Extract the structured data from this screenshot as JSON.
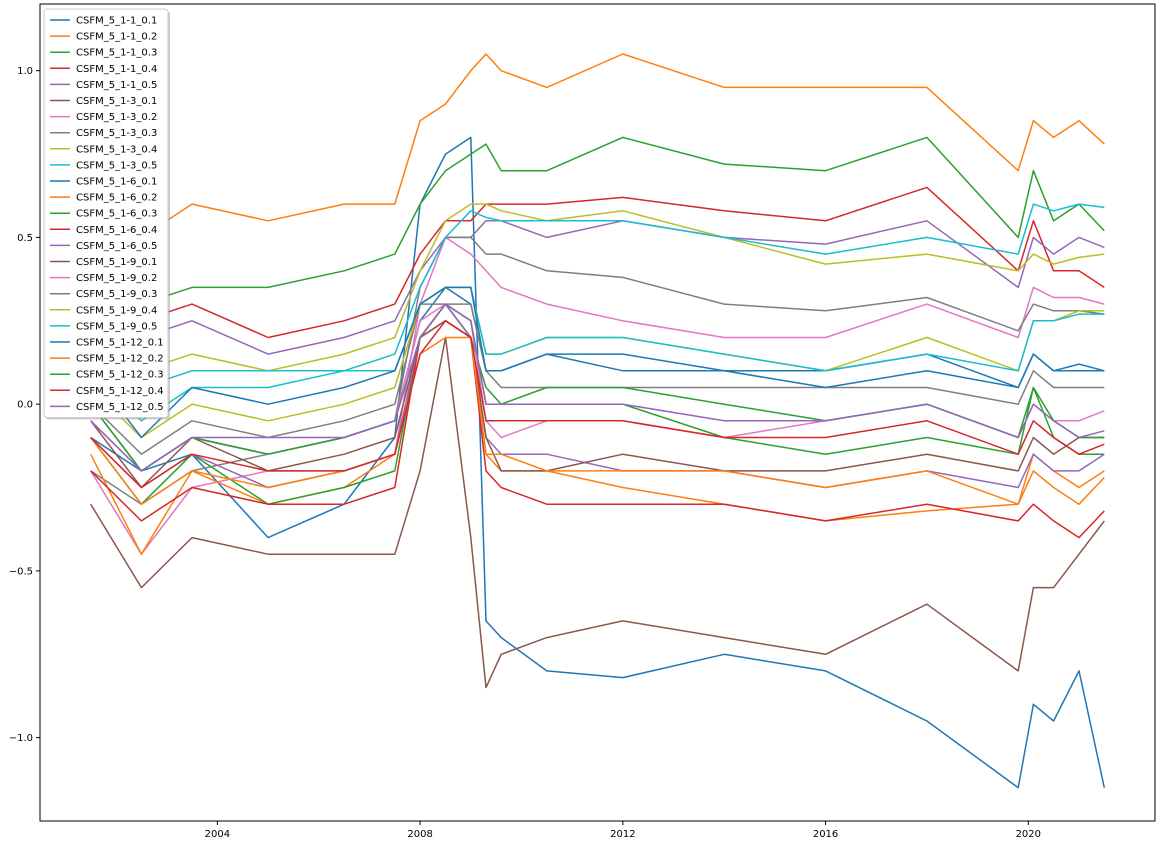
{
  "chart_data": {
    "type": "line",
    "title": "",
    "xlabel": "",
    "ylabel": "",
    "x_range": [
      2000.5,
      2022.5
    ],
    "ylim": [
      -1.25,
      1.2
    ],
    "grid": false,
    "legend_placement": "upper-left",
    "x_ticks": [
      2004,
      2008,
      2012,
      2016,
      2020
    ],
    "x_tick_labels": [
      "2004",
      "2008",
      "2012",
      "2016",
      "2020"
    ],
    "y_ticks": [
      1.0,
      0.5,
      0.0,
      -0.5,
      -1.0
    ],
    "y_tick_labels": [
      "1.0",
      "0.5",
      "0.0",
      "−0.5",
      "−1.0"
    ],
    "x_dates": [
      2001.5,
      2002.5,
      2003.5,
      2005.0,
      2006.5,
      2007.5,
      2008.0,
      2008.5,
      2009.0,
      2009.3,
      2009.6,
      2010.5,
      2012.0,
      2014.0,
      2016.0,
      2018.0,
      2019.8,
      2020.1,
      2020.5,
      2021.0,
      2021.5
    ],
    "series": [
      {
        "name": "CSFM_5_1-1_0.1",
        "color": "#1f77b4",
        "values": [
          0.0,
          -0.2,
          -0.15,
          -0.4,
          -0.3,
          -0.1,
          0.6,
          0.75,
          0.8,
          -0.65,
          -0.7,
          -0.8,
          -0.82,
          -0.75,
          -0.8,
          -0.95,
          -1.15,
          -0.9,
          -0.95,
          -0.8,
          -1.15
        ]
      },
      {
        "name": "CSFM_5_1-1_0.2",
        "color": "#ff7f0e",
        "values": [
          0.55,
          0.5,
          0.6,
          0.55,
          0.6,
          0.6,
          0.85,
          0.9,
          1.0,
          1.05,
          1.0,
          0.95,
          1.05,
          0.95,
          0.95,
          0.95,
          0.7,
          0.85,
          0.8,
          0.85,
          0.78
        ]
      },
      {
        "name": "CSFM_5_1-1_0.3",
        "color": "#2ca02c",
        "values": [
          0.3,
          0.3,
          0.35,
          0.35,
          0.4,
          0.45,
          0.6,
          0.7,
          0.75,
          0.78,
          0.7,
          0.7,
          0.8,
          0.72,
          0.7,
          0.8,
          0.5,
          0.7,
          0.55,
          0.6,
          0.52
        ]
      },
      {
        "name": "CSFM_5_1-1_0.4",
        "color": "#d62728",
        "values": [
          0.25,
          0.25,
          0.3,
          0.2,
          0.25,
          0.3,
          0.45,
          0.55,
          0.55,
          0.6,
          0.6,
          0.6,
          0.62,
          0.58,
          0.55,
          0.65,
          0.4,
          0.55,
          0.4,
          0.4,
          0.35
        ]
      },
      {
        "name": "CSFM_5_1-1_0.5",
        "color": "#9467bd",
        "values": [
          0.2,
          0.2,
          0.25,
          0.15,
          0.2,
          0.25,
          0.4,
          0.5,
          0.5,
          0.55,
          0.55,
          0.5,
          0.55,
          0.5,
          0.48,
          0.55,
          0.35,
          0.5,
          0.45,
          0.5,
          0.47
        ]
      },
      {
        "name": "CSFM_5_1-3_0.1",
        "color": "#8c564b",
        "values": [
          -0.3,
          -0.55,
          -0.4,
          -0.45,
          -0.45,
          -0.45,
          -0.2,
          0.2,
          -0.4,
          -0.85,
          -0.75,
          -0.7,
          -0.65,
          -0.7,
          -0.75,
          -0.6,
          -0.8,
          -0.55,
          -0.55,
          -0.45,
          -0.35
        ]
      },
      {
        "name": "CSFM_5_1-3_0.2",
        "color": "#e377c2",
        "values": [
          -0.2,
          -0.45,
          -0.25,
          -0.2,
          -0.2,
          -0.15,
          0.3,
          0.5,
          0.45,
          0.4,
          0.35,
          0.3,
          0.25,
          0.2,
          0.2,
          0.3,
          0.2,
          0.35,
          0.32,
          0.32,
          0.3
        ]
      },
      {
        "name": "CSFM_5_1-3_0.3",
        "color": "#7f7f7f",
        "values": [
          -0.2,
          -0.3,
          -0.2,
          -0.15,
          -0.1,
          -0.05,
          0.35,
          0.5,
          0.5,
          0.45,
          0.45,
          0.4,
          0.38,
          0.3,
          0.28,
          0.32,
          0.22,
          0.3,
          0.28,
          0.28,
          0.27
        ]
      },
      {
        "name": "CSFM_5_1-3_0.4",
        "color": "#bcbd22",
        "values": [
          0.1,
          0.1,
          0.15,
          0.1,
          0.15,
          0.2,
          0.4,
          0.55,
          0.6,
          0.6,
          0.58,
          0.55,
          0.58,
          0.5,
          0.42,
          0.45,
          0.4,
          0.45,
          0.42,
          0.44,
          0.45
        ]
      },
      {
        "name": "CSFM_5_1-3_0.5",
        "color": "#17becf",
        "values": [
          0.05,
          0.05,
          0.1,
          0.1,
          0.1,
          0.15,
          0.35,
          0.5,
          0.58,
          0.56,
          0.55,
          0.55,
          0.55,
          0.5,
          0.45,
          0.5,
          0.45,
          0.6,
          0.58,
          0.6,
          0.59
        ]
      },
      {
        "name": "CSFM_5_1-6_0.1",
        "color": "#1f77b4",
        "values": [
          -0.1,
          -0.2,
          -0.1,
          -0.15,
          -0.1,
          -0.05,
          0.25,
          0.35,
          0.3,
          0.1,
          0.1,
          0.15,
          0.15,
          0.1,
          0.1,
          0.15,
          0.05,
          0.15,
          0.1,
          0.12,
          0.1
        ]
      },
      {
        "name": "CSFM_5_1-6_0.2",
        "color": "#ff7f0e",
        "values": [
          -0.15,
          -0.45,
          -0.2,
          -0.3,
          -0.25,
          -0.15,
          0.2,
          0.3,
          0.2,
          -0.15,
          -0.2,
          -0.2,
          -0.25,
          -0.3,
          -0.35,
          -0.32,
          -0.3,
          -0.15,
          -0.2,
          -0.25,
          -0.2
        ]
      },
      {
        "name": "CSFM_5_1-6_0.3",
        "color": "#2ca02c",
        "values": [
          -0.1,
          -0.3,
          -0.15,
          -0.3,
          -0.25,
          -0.2,
          0.2,
          0.3,
          0.2,
          0.05,
          0.0,
          0.0,
          0.0,
          -0.1,
          -0.15,
          -0.1,
          -0.15,
          0.05,
          -0.1,
          -0.15,
          -0.15
        ]
      },
      {
        "name": "CSFM_5_1-6_0.4",
        "color": "#d62728",
        "values": [
          -0.2,
          -0.35,
          -0.25,
          -0.3,
          -0.3,
          -0.25,
          0.2,
          0.25,
          0.2,
          -0.2,
          -0.25,
          -0.3,
          -0.3,
          -0.3,
          -0.35,
          -0.3,
          -0.35,
          -0.3,
          -0.35,
          -0.4,
          -0.32
        ]
      },
      {
        "name": "CSFM_5_1-6_0.5",
        "color": "#9467bd",
        "values": [
          -0.1,
          -0.25,
          -0.15,
          -0.25,
          -0.2,
          -0.15,
          0.2,
          0.3,
          0.2,
          -0.1,
          -0.15,
          -0.15,
          -0.2,
          -0.2,
          -0.25,
          -0.2,
          -0.25,
          -0.15,
          -0.2,
          -0.2,
          -0.15
        ]
      },
      {
        "name": "CSFM_5_1-9_0.1",
        "color": "#8c564b",
        "values": [
          -0.05,
          -0.25,
          -0.1,
          -0.2,
          -0.15,
          -0.1,
          0.2,
          0.25,
          0.2,
          -0.1,
          -0.2,
          -0.2,
          -0.15,
          -0.2,
          -0.2,
          -0.15,
          -0.2,
          -0.1,
          -0.15,
          -0.1,
          -0.1
        ]
      },
      {
        "name": "CSFM_5_1-9_0.2",
        "color": "#e377c2",
        "values": [
          -0.05,
          -0.2,
          -0.1,
          -0.15,
          -0.1,
          -0.05,
          0.25,
          0.3,
          0.25,
          -0.05,
          -0.1,
          -0.05,
          -0.05,
          -0.1,
          -0.05,
          0.0,
          -0.1,
          0.0,
          -0.05,
          -0.05,
          -0.02
        ]
      },
      {
        "name": "CSFM_5_1-9_0.3",
        "color": "#7f7f7f",
        "values": [
          0.0,
          -0.15,
          -0.05,
          -0.1,
          -0.05,
          0.0,
          0.3,
          0.3,
          0.3,
          0.1,
          0.05,
          0.05,
          0.05,
          0.05,
          0.05,
          0.05,
          0.0,
          0.1,
          0.05,
          0.05,
          0.05
        ]
      },
      {
        "name": "CSFM_5_1-9_0.4",
        "color": "#bcbd22",
        "values": [
          0.05,
          -0.1,
          0.0,
          -0.05,
          0.0,
          0.05,
          0.3,
          0.35,
          0.35,
          0.15,
          0.15,
          0.2,
          0.2,
          0.15,
          0.1,
          0.2,
          0.1,
          0.25,
          0.25,
          0.28,
          0.28
        ]
      },
      {
        "name": "CSFM_5_1-9_0.5",
        "color": "#17becf",
        "values": [
          0.1,
          -0.05,
          0.05,
          0.05,
          0.1,
          0.1,
          0.3,
          0.35,
          0.35,
          0.15,
          0.15,
          0.2,
          0.2,
          0.15,
          0.1,
          0.15,
          0.1,
          0.25,
          0.25,
          0.27,
          0.27
        ]
      },
      {
        "name": "CSFM_5_1-12_0.1",
        "color": "#1f77b4",
        "values": [
          0.1,
          -0.1,
          0.05,
          0.0,
          0.05,
          0.1,
          0.3,
          0.35,
          0.35,
          0.1,
          0.1,
          0.15,
          0.1,
          0.1,
          0.05,
          0.1,
          0.05,
          0.15,
          0.1,
          0.1,
          0.1
        ]
      },
      {
        "name": "CSFM_5_1-12_0.2",
        "color": "#ff7f0e",
        "values": [
          -0.1,
          -0.3,
          -0.2,
          -0.25,
          -0.2,
          -0.15,
          0.15,
          0.2,
          0.2,
          -0.15,
          -0.15,
          -0.2,
          -0.2,
          -0.2,
          -0.25,
          -0.2,
          -0.3,
          -0.2,
          -0.25,
          -0.3,
          -0.22
        ]
      },
      {
        "name": "CSFM_5_1-12_0.3",
        "color": "#2ca02c",
        "values": [
          0.0,
          -0.2,
          -0.1,
          -0.15,
          -0.1,
          -0.05,
          0.2,
          0.3,
          0.25,
          0.0,
          0.0,
          0.05,
          0.05,
          0.0,
          -0.05,
          0.0,
          -0.1,
          0.05,
          -0.05,
          -0.1,
          -0.1
        ]
      },
      {
        "name": "CSFM_5_1-12_0.4",
        "color": "#d62728",
        "values": [
          -0.1,
          -0.25,
          -0.15,
          -0.2,
          -0.2,
          -0.15,
          0.15,
          0.25,
          0.2,
          -0.05,
          -0.05,
          -0.05,
          -0.05,
          -0.1,
          -0.1,
          -0.05,
          -0.15,
          -0.05,
          -0.1,
          -0.15,
          -0.12
        ]
      },
      {
        "name": "CSFM_5_1-12_0.5",
        "color": "#9467bd",
        "values": [
          -0.05,
          -0.2,
          -0.1,
          -0.1,
          -0.1,
          -0.05,
          0.2,
          0.3,
          0.25,
          0.0,
          0.0,
          0.0,
          0.0,
          -0.05,
          -0.05,
          0.0,
          -0.1,
          0.0,
          -0.05,
          -0.1,
          -0.08
        ]
      }
    ]
  }
}
